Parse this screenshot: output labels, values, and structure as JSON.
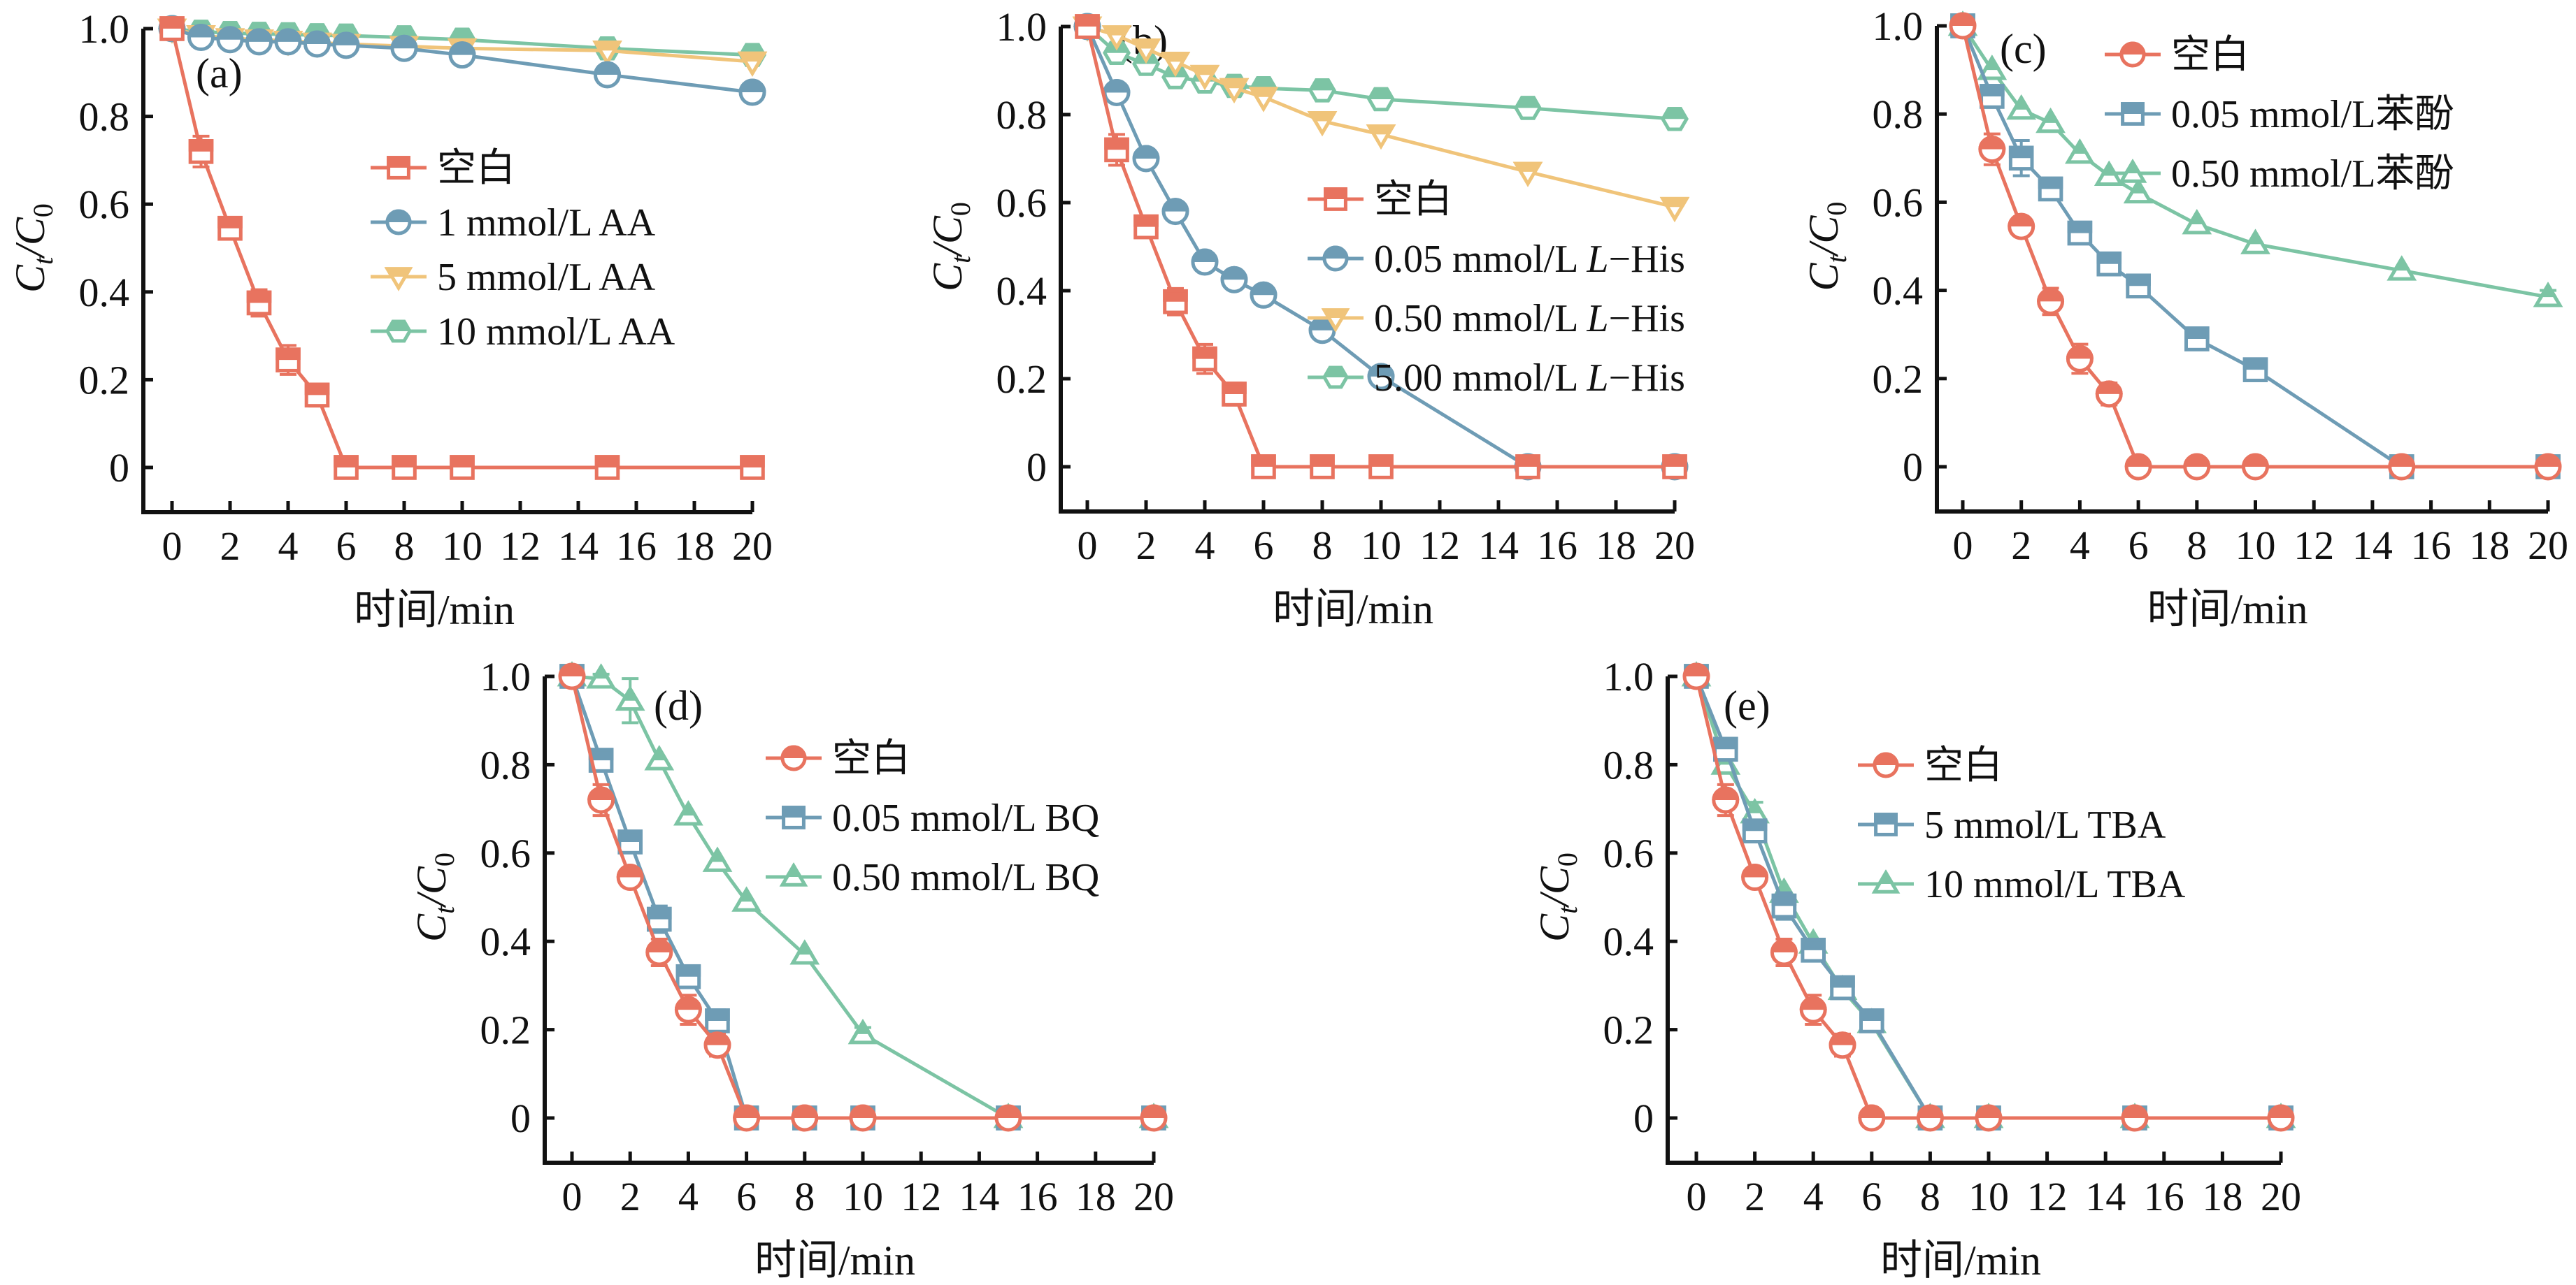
{
  "colors": {
    "red": "#E8735F",
    "blue": "#6E9CB5",
    "yellow": "#F0C47A",
    "green": "#7CC4A4"
  },
  "chart_data": [
    {
      "type": "line",
      "panel": "(a)",
      "xlabel": "时间/min",
      "ylabel": "Ct/C0",
      "xlim": [
        0,
        20
      ],
      "ylim": [
        0,
        1.0
      ],
      "xticks": [
        "0",
        "2",
        "4",
        "6",
        "8",
        "10",
        "12",
        "14",
        "16",
        "18",
        "20"
      ],
      "yticks": [
        "0",
        "0.2",
        "0.4",
        "0.6",
        "0.8",
        "1.0"
      ],
      "legend_position": "center-right",
      "x": [
        0,
        1,
        2,
        3,
        4,
        5,
        6,
        8,
        10,
        15,
        20
      ],
      "series": [
        {
          "name": "空白",
          "color": "red",
          "marker": "square",
          "values": [
            1.0,
            0.72,
            0.545,
            0.375,
            0.245,
            0.165,
            0,
            0,
            0,
            0,
            0
          ],
          "errors": [
            0,
            0.035,
            0.02,
            0.03,
            0.033,
            0.025,
            0,
            0,
            0,
            0,
            0
          ]
        },
        {
          "name": "1 mmol/L AA",
          "color": "blue",
          "marker": "circle",
          "values": [
            1.0,
            0.98,
            0.975,
            0.97,
            0.97,
            0.965,
            0.962,
            0.955,
            0.94,
            0.895,
            0.855
          ],
          "errors": [
            0,
            0,
            0,
            0,
            0,
            0,
            0,
            0,
            0,
            0,
            0
          ]
        },
        {
          "name": "5 mmol/L AA",
          "color": "yellow",
          "marker": "triangle-down",
          "values": [
            1.0,
            0.985,
            0.978,
            0.975,
            0.972,
            0.968,
            0.965,
            0.96,
            0.955,
            0.95,
            0.925
          ],
          "errors": [
            0,
            0,
            0,
            0,
            0,
            0,
            0,
            0,
            0,
            0,
            0
          ]
        },
        {
          "name": "10 mmol/L AA",
          "color": "green",
          "marker": "hexagon",
          "values": [
            1.0,
            0.993,
            0.99,
            0.988,
            0.987,
            0.985,
            0.984,
            0.98,
            0.975,
            0.955,
            0.94
          ],
          "errors": [
            0,
            0,
            0,
            0,
            0,
            0,
            0,
            0,
            0,
            0,
            0
          ]
        }
      ]
    },
    {
      "type": "line",
      "panel": "(b)",
      "xlabel": "时间/min",
      "ylabel": "Ct/C0",
      "xlim": [
        0,
        20
      ],
      "ylim": [
        0,
        1.0
      ],
      "xticks": [
        "0",
        "2",
        "4",
        "6",
        "8",
        "10",
        "12",
        "14",
        "16",
        "18",
        "20"
      ],
      "yticks": [
        "0",
        "0.2",
        "0.4",
        "0.6",
        "0.8",
        "1.0"
      ],
      "legend_position": "center-right",
      "x": [
        0,
        1,
        2,
        3,
        4,
        5,
        6,
        8,
        10,
        15,
        20
      ],
      "series": [
        {
          "name": "空白",
          "color": "red",
          "marker": "square",
          "values": [
            1.0,
            0.72,
            0.545,
            0.375,
            0.245,
            0.165,
            0,
            0,
            0,
            0,
            0
          ],
          "errors": [
            0,
            0.035,
            0.02,
            0.03,
            0.033,
            0.025,
            0,
            0,
            0,
            0,
            0
          ]
        },
        {
          "name": "0.05 mmol/L L-His",
          "color": "blue",
          "marker": "circle",
          "values": [
            1.0,
            0.85,
            0.7,
            0.58,
            0.465,
            0.425,
            0.39,
            0.31,
            0.205,
            0,
            0
          ],
          "errors": [
            0,
            0,
            0,
            0,
            0,
            0,
            0,
            0,
            0,
            0,
            0
          ]
        },
        {
          "name": "0.50 mmol/L L-His",
          "color": "yellow",
          "marker": "triangle-down",
          "values": [
            1.0,
            0.98,
            0.95,
            0.92,
            0.89,
            0.86,
            0.84,
            0.785,
            0.755,
            0.67,
            0.59
          ],
          "errors": [
            0,
            0,
            0,
            0,
            0,
            0,
            0,
            0,
            0,
            0,
            0
          ]
        },
        {
          "name": "5.00 mmol/L L-His",
          "color": "green",
          "marker": "hexagon",
          "values": [
            1.0,
            0.94,
            0.915,
            0.885,
            0.875,
            0.865,
            0.86,
            0.855,
            0.835,
            0.815,
            0.79
          ],
          "errors": [
            0,
            0,
            0,
            0,
            0,
            0,
            0,
            0,
            0,
            0,
            0
          ]
        }
      ]
    },
    {
      "type": "line",
      "panel": "(c)",
      "xlabel": "时间/min",
      "ylabel": "Ct/C0",
      "xlim": [
        0,
        20
      ],
      "ylim": [
        0,
        1.0
      ],
      "xticks": [
        "0",
        "2",
        "4",
        "6",
        "8",
        "10",
        "12",
        "14",
        "16",
        "18",
        "20"
      ],
      "yticks": [
        "0",
        "0.2",
        "0.4",
        "0.6",
        "0.8",
        "1.0"
      ],
      "legend_position": "top-right",
      "x": [
        0,
        1,
        2,
        3,
        4,
        5,
        6,
        8,
        10,
        15,
        20
      ],
      "series": [
        {
          "name": "空白",
          "color": "red",
          "marker": "circle",
          "values": [
            1.0,
            0.72,
            0.545,
            0.375,
            0.245,
            0.165,
            0,
            0,
            0,
            0,
            0
          ],
          "errors": [
            0,
            0.035,
            0.02,
            0.03,
            0.033,
            0.025,
            0,
            0,
            0,
            0,
            0
          ]
        },
        {
          "name": "0.05 mmol/L苯酚",
          "color": "blue",
          "marker": "square",
          "values": [
            1.0,
            0.84,
            0.7,
            0.63,
            0.53,
            0.46,
            0.41,
            0.29,
            0.22,
            0,
            0
          ],
          "errors": [
            0,
            0.025,
            0.04,
            0,
            0,
            0,
            0,
            0,
            0,
            0,
            0
          ]
        },
        {
          "name": "0.50 mmol/L苯酚",
          "color": "green",
          "marker": "triangle-up",
          "values": [
            1.0,
            0.9,
            0.81,
            0.78,
            0.71,
            0.66,
            0.62,
            0.55,
            0.505,
            0.445,
            0.385
          ],
          "errors": [
            0,
            0,
            0,
            0,
            0,
            0,
            0,
            0,
            0,
            0,
            0.015
          ]
        }
      ]
    },
    {
      "type": "line",
      "panel": "(d)",
      "xlabel": "时间/min",
      "ylabel": "Ct/C0",
      "xlim": [
        0,
        20
      ],
      "ylim": [
        0,
        1.0
      ],
      "xticks": [
        "0",
        "2",
        "4",
        "6",
        "8",
        "10",
        "12",
        "14",
        "16",
        "18",
        "20"
      ],
      "yticks": [
        "0",
        "0.2",
        "0.4",
        "0.6",
        "0.8",
        "1.0"
      ],
      "legend_position": "top-right",
      "x": [
        0,
        1,
        2,
        3,
        4,
        5,
        6,
        8,
        10,
        15,
        20
      ],
      "series": [
        {
          "name": "空白",
          "color": "red",
          "marker": "circle",
          "values": [
            1.0,
            0.72,
            0.545,
            0.375,
            0.245,
            0.165,
            0,
            0,
            0,
            0,
            0
          ],
          "errors": [
            0,
            0.035,
            0.02,
            0.03,
            0.033,
            0.025,
            0,
            0,
            0,
            0,
            0
          ]
        },
        {
          "name": "0.05 mmol/L BQ",
          "color": "blue",
          "marker": "square",
          "values": [
            1.0,
            0.81,
            0.625,
            0.45,
            0.32,
            0.22,
            0,
            0,
            0,
            0,
            0
          ],
          "errors": [
            0,
            0,
            0,
            0.03,
            0.02,
            0.025,
            0,
            0,
            0,
            0,
            0
          ]
        },
        {
          "name": "0.50 mmol/L BQ",
          "color": "green",
          "marker": "triangle-up",
          "values": [
            1.0,
            0.995,
            0.945,
            0.81,
            0.685,
            0.58,
            0.49,
            0.37,
            0.19,
            0,
            0
          ],
          "errors": [
            0,
            0.01,
            0.05,
            0,
            0,
            0,
            0,
            0,
            0.015,
            0,
            0
          ]
        }
      ]
    },
    {
      "type": "line",
      "panel": "(e)",
      "xlabel": "时间/min",
      "ylabel": "Ct/C0",
      "xlim": [
        0,
        20
      ],
      "ylim": [
        0,
        1.0
      ],
      "xticks": [
        "0",
        "2",
        "4",
        "6",
        "8",
        "10",
        "12",
        "14",
        "16",
        "18",
        "20"
      ],
      "yticks": [
        "0",
        "0.2",
        "0.4",
        "0.6",
        "0.8",
        "1.0"
      ],
      "legend_position": "top-right",
      "x": [
        0,
        1,
        2,
        3,
        4,
        5,
        6,
        8,
        10,
        15,
        20
      ],
      "series": [
        {
          "name": "空白",
          "color": "red",
          "marker": "circle",
          "values": [
            1.0,
            0.72,
            0.545,
            0.375,
            0.245,
            0.165,
            0,
            0,
            0,
            0,
            0
          ],
          "errors": [
            0,
            0.035,
            0.02,
            0.03,
            0.033,
            0.025,
            0,
            0,
            0,
            0,
            0
          ]
        },
        {
          "name": "5 mmol/L TBA",
          "color": "blue",
          "marker": "square",
          "values": [
            1.0,
            0.835,
            0.65,
            0.48,
            0.38,
            0.295,
            0.22,
            0,
            0,
            0,
            0
          ],
          "errors": [
            0,
            0,
            0,
            0.03,
            0,
            0,
            0,
            0,
            0,
            0,
            0
          ]
        },
        {
          "name": "10 mmol/L TBA",
          "color": "green",
          "marker": "triangle-up",
          "values": [
            1.0,
            0.8,
            0.69,
            0.51,
            0.395,
            0.29,
            0.215,
            0,
            0,
            0,
            0
          ],
          "errors": [
            0,
            0,
            0.025,
            0,
            0,
            0,
            0,
            0,
            0,
            0,
            0
          ]
        }
      ]
    }
  ]
}
